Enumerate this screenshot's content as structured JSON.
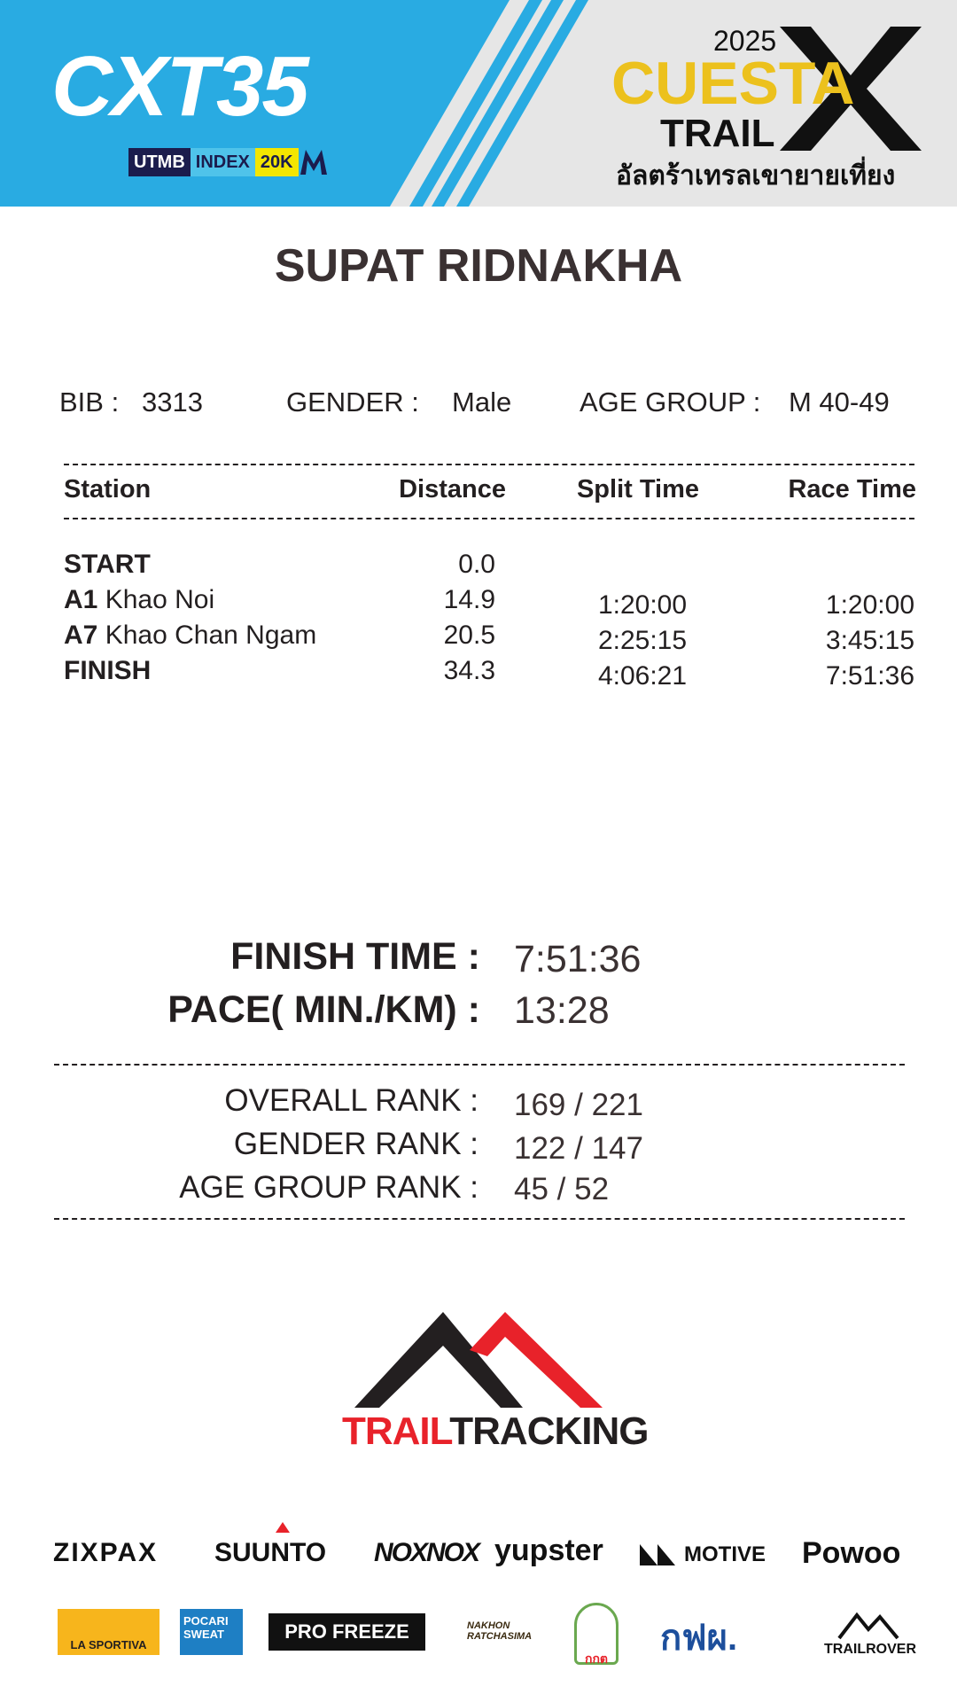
{
  "header": {
    "event_logo": "CXT35",
    "utmb": "UTMB",
    "index": "INDEX",
    "distance_badge": "20K",
    "year": "2025",
    "cuesta": "CUESTA",
    "trail": "TRAIL",
    "thai_name": "อัลตร้าเทรลเขายายเที่ยง",
    "colors": {
      "blue": "#29abe2",
      "yellow": "#ecc11d"
    }
  },
  "runner": {
    "name": "SUPAT RIDNAKHA",
    "bib_label": "BIB :",
    "bib": "3313",
    "gender_label": "GENDER :",
    "gender": "Male",
    "age_group_label": "AGE GROUP :",
    "age_group": "M 40-49"
  },
  "table": {
    "headers": [
      "Station",
      "Distance",
      "Split Time",
      "Race Time"
    ],
    "rows": [
      {
        "code": "START",
        "name": "",
        "distance": "0.0",
        "split": "",
        "race": ""
      },
      {
        "code": "A1",
        "name": "Khao Noi",
        "distance": "14.9",
        "split": "1:20:00",
        "race": "1:20:00"
      },
      {
        "code": "A7",
        "name": "Khao Chan Ngam",
        "distance": "20.5",
        "split": "2:25:15",
        "race": "3:45:15"
      },
      {
        "code": "FINISH",
        "name": "",
        "distance": "34.3",
        "split": "4:06:21",
        "race": "7:51:36"
      }
    ]
  },
  "summary": {
    "finish_label": "FINISH TIME :",
    "finish": "7:51:36",
    "pace_label": "PACE( MIN./KM) :",
    "pace": "13:28"
  },
  "ranks": {
    "overall_label": "OVERALL RANK  :",
    "overall": "169 / 221",
    "gender_label": "GENDER RANK  :",
    "gender": "122 / 147",
    "age_label": "AGE GROUP RANK :",
    "age": "45 / 52"
  },
  "brand": {
    "trail": "TRAIL",
    "tracking": "TRACKING"
  },
  "sponsors": {
    "row1": [
      "ZIXPAX",
      "SUUNTO",
      "NOXNOX",
      "yupster",
      "MOTIVE",
      "Powoo"
    ],
    "row2": [
      "LA SPORTIVA",
      "POCARI SWEAT",
      "PRO FREEZE",
      "NAKHON RATCHASIMA",
      "กกต",
      "กฟผ.",
      "TRAILROVER"
    ]
  }
}
